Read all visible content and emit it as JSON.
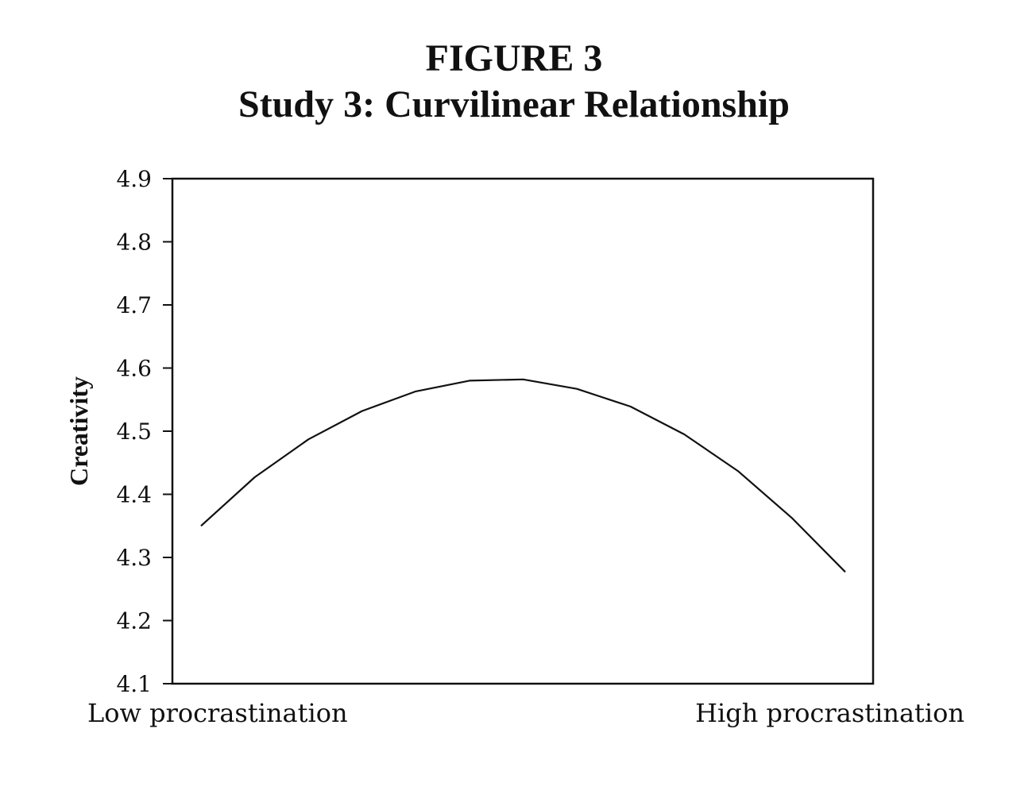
{
  "figure": {
    "label": "FIGURE 3",
    "title": "Study 3: Curvilinear Relationship"
  },
  "chart_data": {
    "type": "line",
    "title": "Study 3: Curvilinear Relationship",
    "xlabel": "",
    "ylabel": "Creativity",
    "x_end_labels": {
      "low": "Low procrastination",
      "high": "High procrastination"
    },
    "ylim": [
      4.1,
      4.9
    ],
    "yticks": [
      "4.1",
      "4.2",
      "4.3",
      "4.4",
      "4.5",
      "4.6",
      "4.7",
      "4.8",
      "4.9"
    ],
    "grid": false,
    "legend": "none",
    "line_color": "#111111",
    "series": [
      {
        "values": [
          4.35,
          4.427,
          4.487,
          4.532,
          4.563,
          4.58,
          4.582,
          4.567,
          4.539,
          4.495,
          4.437,
          4.363,
          4.277
        ]
      }
    ]
  }
}
